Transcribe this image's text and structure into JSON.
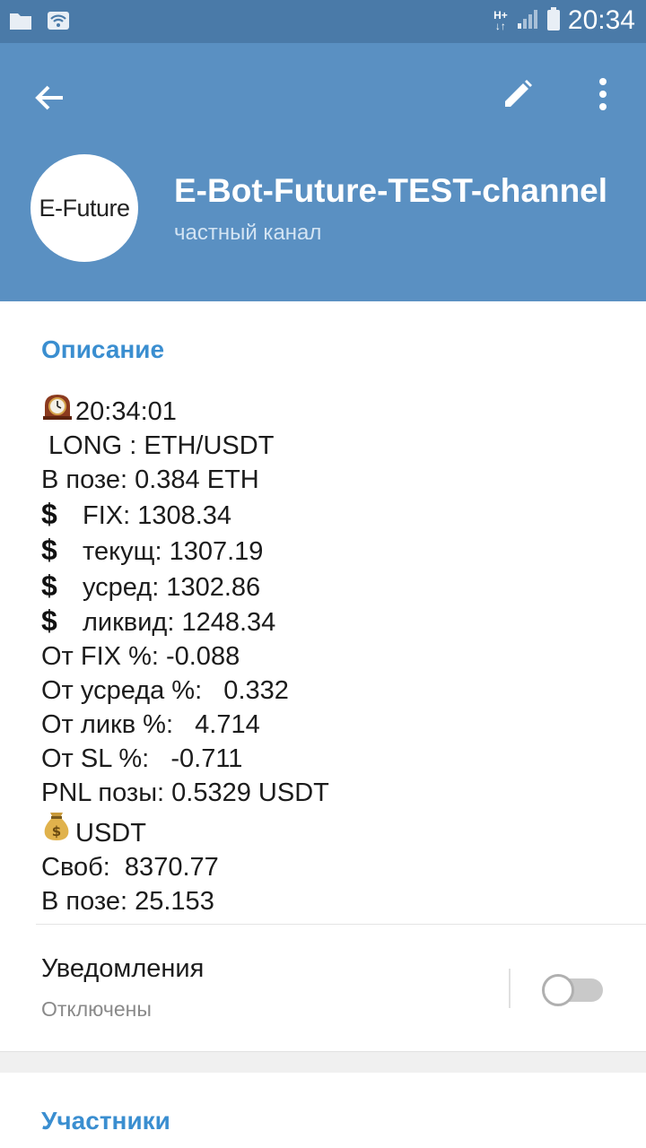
{
  "status_bar": {
    "time": "20:34",
    "network_type_top": "H+",
    "network_type_bottom": "↓↑"
  },
  "header": {
    "avatar_text": "E-Future",
    "title": "E-Bot-Future-TEST-channel",
    "subtitle": "частный канал"
  },
  "description": {
    "label": "Описание",
    "time_line": "20:34:01",
    "position_line": " LONG : ETH/USDT",
    "in_position": "В позе: 0.384 ETH",
    "fix": "FIX: 1308.34",
    "current": "текущ: 1307.19",
    "average": "усред: 1302.86",
    "liquidation": "ликвид: 1248.34",
    "from_fix": "От FIX %: -0.088",
    "from_average": "От усреда %:   0.332",
    "from_liq": "От ликв %:   4.714",
    "from_sl": "От SL %:   -0.711",
    "pnl": "PNL позы: 0.5329 USDT",
    "usdt_label": "USDT",
    "free": "Своб:  8370.77",
    "in_position_usdt": "В позе: 25.153"
  },
  "notifications": {
    "title": "Уведомления",
    "status": "Отключены",
    "enabled": false
  },
  "members": {
    "label": "Участники"
  },
  "colors": {
    "status_bar": "#4a7aa8",
    "header": "#5a90c2",
    "accent": "#3a8ed0"
  },
  "icons": {
    "back": "arrow-left-icon",
    "edit": "pencil-icon",
    "more": "more-vertical-icon",
    "clock": "mantelpiece-clock-icon",
    "dollar": "heavy-dollar-sign-icon",
    "money_bag": "money-bag-icon"
  }
}
